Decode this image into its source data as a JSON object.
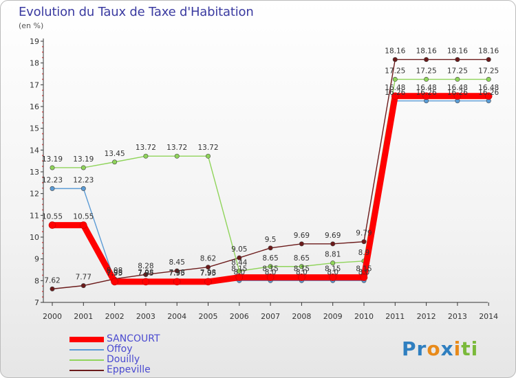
{
  "header": {
    "title": "Evolution du Taux de Taxe d'Habitation",
    "subtitle": "(en %)"
  },
  "logo": {
    "letters": [
      "P",
      "r",
      "o",
      "x",
      "i",
      "t",
      "i"
    ],
    "colors": [
      "#2f7fc0",
      "#2f7fc0",
      "#e88a1a",
      "#2f7fc0",
      "#e88a1a",
      "#7ab93a",
      "#7ab93a"
    ]
  },
  "chart_data": {
    "type": "line",
    "title": "Evolution du Taux de Taxe d'Habitation",
    "ylabel": "(en %)",
    "xlabel": "",
    "x": [
      "2000",
      "2001",
      "2002",
      "2003",
      "2004",
      "2005",
      "2006",
      "2007",
      "2008",
      "2009",
      "2010",
      "2011",
      "2012",
      "2013",
      "2014"
    ],
    "ylim": [
      7,
      19
    ],
    "yticks": [
      "7",
      "8",
      "9",
      "10",
      "11",
      "12",
      "13",
      "14",
      "15",
      "16",
      "17",
      "18",
      "19"
    ],
    "grid": false,
    "legend_position": "bottom-left",
    "series": [
      {
        "name": "Eppeville",
        "color": "#6b1a1a",
        "values": [
          7.62,
          7.77,
          8.08,
          8.28,
          8.45,
          8.62,
          9.05,
          9.5,
          9.69,
          9.69,
          9.79,
          18.16,
          18.16,
          18.16,
          18.16
        ],
        "labels": [
          "7.62",
          "7.77",
          "8.08",
          "8.28",
          "8.45",
          "8.62",
          "9.05",
          "9.5",
          "9.69",
          "9.69",
          "9.79",
          "18.16",
          "18.16",
          "18.16",
          "18.16"
        ]
      },
      {
        "name": "Douilly",
        "color": "#8fd45a",
        "values": [
          13.19,
          13.19,
          13.45,
          13.72,
          13.72,
          13.72,
          8.44,
          8.65,
          8.65,
          8.81,
          8.9,
          17.25,
          17.25,
          17.25,
          17.25
        ],
        "labels": [
          "13.19",
          "13.19",
          "13.45",
          "13.72",
          "13.72",
          "13.72",
          "8.44",
          "8.65",
          "8.65",
          "8.81",
          "8.9",
          "17.25",
          "17.25",
          "17.25",
          "17.25"
        ]
      },
      {
        "name": "Offoy",
        "color": "#5b9bd5",
        "values": [
          12.23,
          12.23,
          7.98,
          7.98,
          7.98,
          7.98,
          8.0,
          8.0,
          8.0,
          8.0,
          8.0,
          16.26,
          16.26,
          16.26,
          16.26
        ],
        "labels": [
          "12.23",
          "12.23",
          "7.98",
          "7.98",
          "7.98",
          "7.98",
          "8.0",
          "8.0",
          "8.0",
          "8.0",
          "8.0",
          "16.26",
          "16.26",
          "16.26",
          "16.26"
        ]
      },
      {
        "name": "SANCOURT",
        "color": "#ff0000",
        "values": [
          10.55,
          10.55,
          7.95,
          7.95,
          7.95,
          7.95,
          8.15,
          8.15,
          8.15,
          8.15,
          8.15,
          16.48,
          16.48,
          16.48,
          16.48
        ],
        "labels": [
          "10.55",
          "10.55",
          "7.95",
          "7.95",
          "7.95",
          "7.95",
          "8.15",
          "8.15",
          "8.15",
          "8.15",
          "8.15",
          "16.48",
          "16.48",
          "16.48",
          "16.48"
        ]
      }
    ],
    "legend": [
      "SANCOURT",
      "Offoy",
      "Douilly",
      "Eppeville"
    ]
  }
}
